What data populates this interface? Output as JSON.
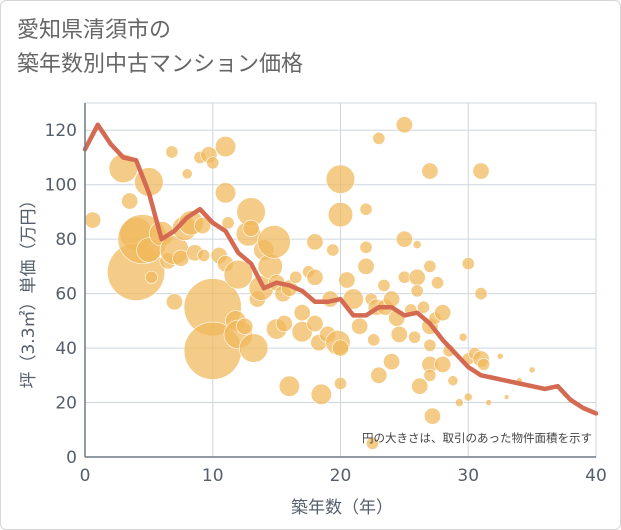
{
  "header": {
    "title_line1": "愛知県清須市の",
    "title_line2": "築年数別中古マンション価格"
  },
  "colors": {
    "bubble": "#f0b85a",
    "line": "#d46a52",
    "grid": "#cfd6dd",
    "axis": "#6e7a85",
    "plot_background": "#ffffff"
  },
  "chart_data": {
    "type": "scatter",
    "xlabel": "築年数（年）",
    "ylabel": "坪（3.3㎡）単価（万円）",
    "xlim": [
      0,
      40
    ],
    "ylim": [
      0,
      130
    ],
    "x_ticks": [
      0,
      10,
      20,
      30,
      40
    ],
    "y_ticks": [
      0,
      20,
      40,
      60,
      80,
      100,
      120
    ],
    "grid": true,
    "note": "円の大きさは、取引のあった物件面積を示す",
    "series": [
      {
        "kind": "line",
        "x": [
          0,
          1,
          2,
          3,
          4,
          5,
          6,
          7,
          8,
          9,
          10,
          11,
          12,
          13,
          14,
          15,
          16,
          17,
          18,
          19,
          20,
          21,
          22,
          23,
          24,
          25,
          26,
          27,
          28,
          29,
          30,
          31,
          32,
          33,
          34,
          35,
          36,
          37,
          38,
          39,
          40
        ],
        "y": [
          113,
          122,
          115,
          110,
          109,
          97,
          80,
          83,
          88,
          91,
          86,
          83,
          75,
          71,
          62,
          64,
          63,
          61,
          57,
          57,
          58,
          52,
          52,
          55,
          55,
          52,
          53,
          49,
          43,
          38,
          33,
          30,
          29,
          28,
          27,
          26,
          25,
          26,
          21,
          18,
          16
        ]
      },
      {
        "kind": "bubble",
        "points": [
          {
            "x": 0.6,
            "y": 87,
            "s": 4
          },
          {
            "x": 3,
            "y": 106,
            "s": 7
          },
          {
            "x": 3.5,
            "y": 94,
            "s": 4
          },
          {
            "x": 4,
            "y": 82,
            "s": 8
          },
          {
            "x": 4,
            "y": 68,
            "s": 14
          },
          {
            "x": 4.5,
            "y": 80,
            "s": 12
          },
          {
            "x": 5,
            "y": 101,
            "s": 7
          },
          {
            "x": 5,
            "y": 76,
            "s": 6
          },
          {
            "x": 5.2,
            "y": 66,
            "s": 3
          },
          {
            "x": 6,
            "y": 82,
            "s": 6
          },
          {
            "x": 6.5,
            "y": 72,
            "s": 4
          },
          {
            "x": 6.8,
            "y": 112,
            "s": 3
          },
          {
            "x": 7,
            "y": 57,
            "s": 4
          },
          {
            "x": 7,
            "y": 76,
            "s": 7
          },
          {
            "x": 7.5,
            "y": 73,
            "s": 4
          },
          {
            "x": 7.8,
            "y": 84,
            "s": 6
          },
          {
            "x": 8,
            "y": 104,
            "s": 2.5
          },
          {
            "x": 8.3,
            "y": 86,
            "s": 6
          },
          {
            "x": 8.6,
            "y": 75,
            "s": 4
          },
          {
            "x": 9,
            "y": 110,
            "s": 3
          },
          {
            "x": 9.2,
            "y": 85,
            "s": 4
          },
          {
            "x": 9.3,
            "y": 74,
            "s": 3
          },
          {
            "x": 9.7,
            "y": 111,
            "s": 4
          },
          {
            "x": 10,
            "y": 108,
            "s": 3
          },
          {
            "x": 10,
            "y": 55,
            "s": 14
          },
          {
            "x": 10,
            "y": 39,
            "s": 14
          },
          {
            "x": 10.5,
            "y": 74,
            "s": 4
          },
          {
            "x": 11,
            "y": 114,
            "s": 5
          },
          {
            "x": 11,
            "y": 97,
            "s": 5
          },
          {
            "x": 11,
            "y": 71,
            "s": 4
          },
          {
            "x": 11.2,
            "y": 86,
            "s": 3
          },
          {
            "x": 11.8,
            "y": 50,
            "s": 5
          },
          {
            "x": 12,
            "y": 45,
            "s": 7
          },
          {
            "x": 12,
            "y": 67,
            "s": 7
          },
          {
            "x": 12.5,
            "y": 48,
            "s": 4
          },
          {
            "x": 12.8,
            "y": 82,
            "s": 6
          },
          {
            "x": 13,
            "y": 90,
            "s": 7
          },
          {
            "x": 13,
            "y": 84,
            "s": 4
          },
          {
            "x": 13.2,
            "y": 40,
            "s": 7
          },
          {
            "x": 13.5,
            "y": 58,
            "s": 4
          },
          {
            "x": 13.8,
            "y": 62,
            "s": 6
          },
          {
            "x": 14,
            "y": 76,
            "s": 5
          },
          {
            "x": 14.5,
            "y": 70,
            "s": 6
          },
          {
            "x": 14.8,
            "y": 79,
            "s": 8
          },
          {
            "x": 15,
            "y": 64,
            "s": 4
          },
          {
            "x": 15,
            "y": 47,
            "s": 5
          },
          {
            "x": 15.5,
            "y": 60,
            "s": 4
          },
          {
            "x": 15.6,
            "y": 49,
            "s": 4
          },
          {
            "x": 16,
            "y": 62,
            "s": 4
          },
          {
            "x": 16,
            "y": 26,
            "s": 5
          },
          {
            "x": 16.5,
            "y": 66,
            "s": 3
          },
          {
            "x": 17,
            "y": 53,
            "s": 4
          },
          {
            "x": 17,
            "y": 46,
            "s": 5
          },
          {
            "x": 17.5,
            "y": 68,
            "s": 3
          },
          {
            "x": 18,
            "y": 79,
            "s": 4
          },
          {
            "x": 18,
            "y": 66,
            "s": 4
          },
          {
            "x": 18,
            "y": 49,
            "s": 4
          },
          {
            "x": 18.3,
            "y": 42,
            "s": 4
          },
          {
            "x": 18.5,
            "y": 23,
            "s": 5
          },
          {
            "x": 19,
            "y": 45,
            "s": 4
          },
          {
            "x": 19.2,
            "y": 58,
            "s": 4
          },
          {
            "x": 19.4,
            "y": 76,
            "s": 3
          },
          {
            "x": 19.8,
            "y": 42,
            "s": 6
          },
          {
            "x": 20,
            "y": 102,
            "s": 7
          },
          {
            "x": 20,
            "y": 89,
            "s": 6
          },
          {
            "x": 20,
            "y": 40,
            "s": 4
          },
          {
            "x": 20,
            "y": 27,
            "s": 3
          },
          {
            "x": 20.5,
            "y": 65,
            "s": 4
          },
          {
            "x": 21,
            "y": 58,
            "s": 5
          },
          {
            "x": 21.5,
            "y": 48,
            "s": 4
          },
          {
            "x": 22,
            "y": 91,
            "s": 3
          },
          {
            "x": 22,
            "y": 77,
            "s": 3
          },
          {
            "x": 22,
            "y": 70,
            "s": 4
          },
          {
            "x": 22.4,
            "y": 58,
            "s": 3
          },
          {
            "x": 22.6,
            "y": 43,
            "s": 3
          },
          {
            "x": 22.8,
            "y": 55,
            "s": 4
          },
          {
            "x": 23,
            "y": 117,
            "s": 3
          },
          {
            "x": 23,
            "y": 30,
            "s": 4
          },
          {
            "x": 23.4,
            "y": 63,
            "s": 3
          },
          {
            "x": 23.5,
            "y": 55,
            "s": 4
          },
          {
            "x": 24,
            "y": 58,
            "s": 4
          },
          {
            "x": 24,
            "y": 35,
            "s": 4
          },
          {
            "x": 24.4,
            "y": 51,
            "s": 4
          },
          {
            "x": 24.6,
            "y": 45,
            "s": 4
          },
          {
            "x": 25,
            "y": 122,
            "s": 4
          },
          {
            "x": 25,
            "y": 80,
            "s": 4
          },
          {
            "x": 25,
            "y": 66,
            "s": 3
          },
          {
            "x": 25.5,
            "y": 54,
            "s": 3
          },
          {
            "x": 25.8,
            "y": 44,
            "s": 3
          },
          {
            "x": 26,
            "y": 78,
            "s": 2
          },
          {
            "x": 26,
            "y": 66,
            "s": 4
          },
          {
            "x": 26,
            "y": 61,
            "s": 3
          },
          {
            "x": 26.2,
            "y": 26,
            "s": 4
          },
          {
            "x": 26.5,
            "y": 55,
            "s": 3
          },
          {
            "x": 27,
            "y": 105,
            "s": 4
          },
          {
            "x": 27,
            "y": 70,
            "s": 3
          },
          {
            "x": 27,
            "y": 48,
            "s": 4
          },
          {
            "x": 27,
            "y": 41,
            "s": 3
          },
          {
            "x": 27,
            "y": 34,
            "s": 4
          },
          {
            "x": 27,
            "y": 30,
            "s": 3
          },
          {
            "x": 27.2,
            "y": 15,
            "s": 4
          },
          {
            "x": 27.4,
            "y": 51,
            "s": 3
          },
          {
            "x": 27.6,
            "y": 64,
            "s": 3
          },
          {
            "x": 28,
            "y": 53,
            "s": 4
          },
          {
            "x": 28,
            "y": 34,
            "s": 4
          },
          {
            "x": 28.5,
            "y": 39,
            "s": 3
          },
          {
            "x": 28.8,
            "y": 28,
            "s": 2.5
          },
          {
            "x": 29.3,
            "y": 20,
            "s": 2
          },
          {
            "x": 29.6,
            "y": 44,
            "s": 2
          },
          {
            "x": 30,
            "y": 71,
            "s": 3
          },
          {
            "x": 30,
            "y": 36,
            "s": 3
          },
          {
            "x": 30,
            "y": 22,
            "s": 2
          },
          {
            "x": 30.5,
            "y": 38,
            "s": 3
          },
          {
            "x": 31,
            "y": 105,
            "s": 4
          },
          {
            "x": 31,
            "y": 60,
            "s": 3
          },
          {
            "x": 31,
            "y": 36,
            "s": 4
          },
          {
            "x": 31.2,
            "y": 34,
            "s": 3
          },
          {
            "x": 31.6,
            "y": 20,
            "s": 1.5
          },
          {
            "x": 32.5,
            "y": 37,
            "s": 1.5
          },
          {
            "x": 35,
            "y": 32,
            "s": 1.5
          },
          {
            "x": 34,
            "y": 28,
            "s": 1.5
          },
          {
            "x": 33,
            "y": 22,
            "s": 1.2
          },
          {
            "x": 22.5,
            "y": 5,
            "s": 3
          }
        ]
      }
    ]
  }
}
